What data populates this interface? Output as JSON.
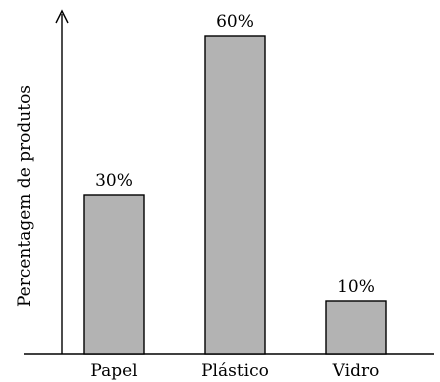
{
  "chart_data": {
    "type": "bar",
    "categories": [
      "Papel",
      "Plástico",
      "Vidro"
    ],
    "values": [
      30,
      60,
      10
    ],
    "value_labels": [
      "30%",
      "60%",
      "10%"
    ],
    "ylabel": "Percentagem de produtos",
    "xlabel": "",
    "ylim": [
      0,
      70
    ],
    "grid": false,
    "legend": "none",
    "colors": {
      "bar": "#b3b3b3",
      "stroke": "#000000"
    }
  }
}
